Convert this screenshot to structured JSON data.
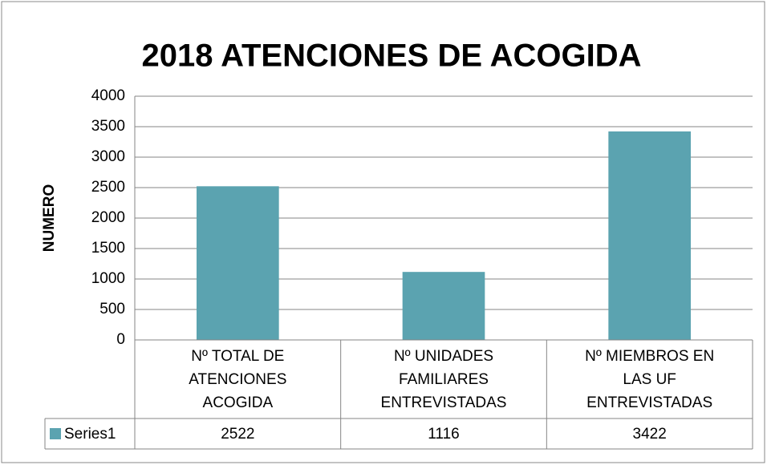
{
  "chart_data": {
    "type": "bar",
    "title": "2018 ATENCIONES DE ACOGIDA",
    "y_label": "NUMERO",
    "categories": [
      "Nº TOTAL DE ATENCIONES ACOGIDA",
      "Nº UNIDADES FAMILIARES ENTREVISTADAS",
      "Nº MIEMBROS EN LAS UF ENTREVISTADAS"
    ],
    "series": [
      {
        "name": "Series1",
        "color": "#5ba3b0",
        "values": [
          2522,
          1116,
          3422
        ]
      }
    ],
    "ylim": [
      0,
      4000
    ],
    "yticks": [
      0,
      500,
      1000,
      1500,
      2000,
      2500,
      3000,
      3500,
      4000
    ],
    "grid": true,
    "data_table": true
  }
}
